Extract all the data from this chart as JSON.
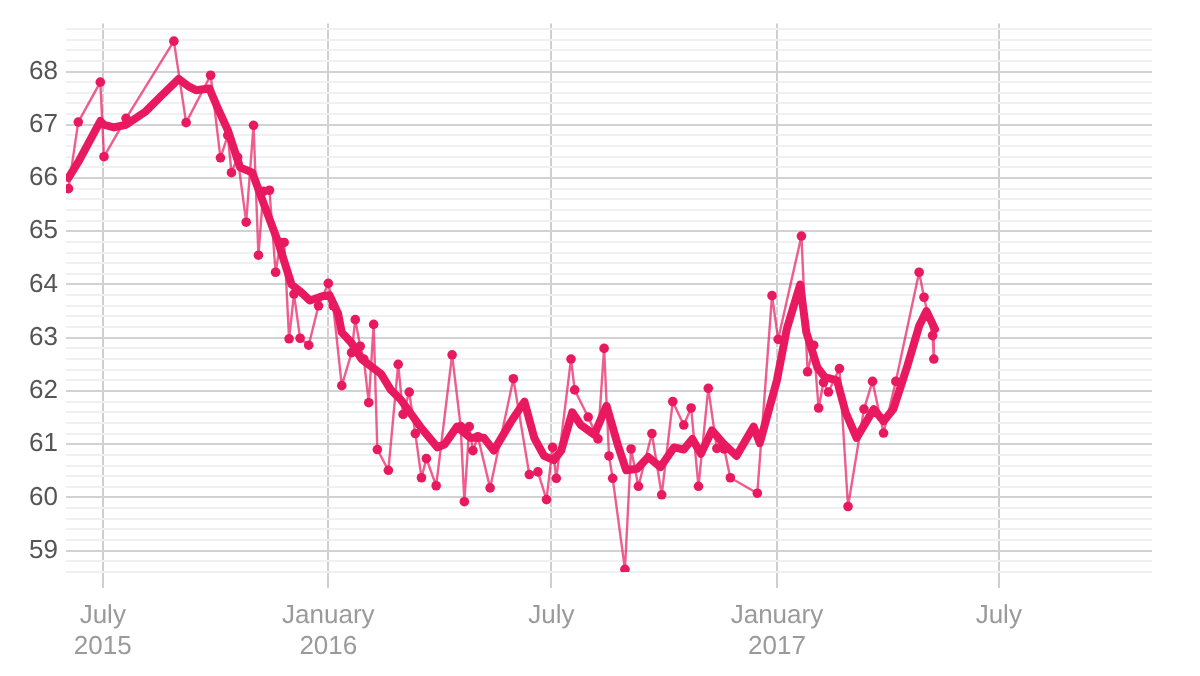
{
  "chart_data": {
    "type": "line",
    "legend": false,
    "grid": true,
    "marker": "circle",
    "line_style": "solid",
    "xlim": [
      "2015-06-01",
      "2017-11-03"
    ],
    "xticks": [
      {
        "value": "2015-07-01",
        "label": "July\n2015"
      },
      {
        "value": "2016-01-01",
        "label": "January\n2016"
      },
      {
        "value": "2016-07-01",
        "label": "July"
      },
      {
        "value": "2017-01-01",
        "label": "January\n2017"
      },
      {
        "value": "2017-07-01",
        "label": "July"
      }
    ],
    "ylim": [
      58.6,
      68.9
    ],
    "yticks": [
      {
        "value": 58.6,
        "label": null
      },
      {
        "value": 58.8,
        "label": null
      },
      59,
      {
        "value": 59.2,
        "label": null
      },
      {
        "value": 59.4,
        "label": null
      },
      {
        "value": 59.6,
        "label": null
      },
      {
        "value": 59.8,
        "label": null
      },
      60,
      {
        "value": 60.2,
        "label": null
      },
      {
        "value": 60.4,
        "label": null
      },
      {
        "value": 60.6,
        "label": null
      },
      {
        "value": 60.8,
        "label": null
      },
      61,
      {
        "value": 61.2,
        "label": null
      },
      {
        "value": 61.4,
        "label": null
      },
      {
        "value": 61.6,
        "label": null
      },
      {
        "value": 61.8,
        "label": null
      },
      62,
      {
        "value": 62.2,
        "label": null
      },
      {
        "value": 62.4,
        "label": null
      },
      {
        "value": 62.6,
        "label": null
      },
      {
        "value": 62.8,
        "label": null
      },
      63,
      {
        "value": 63.2,
        "label": null
      },
      {
        "value": 63.4,
        "label": null
      },
      {
        "value": 63.6,
        "label": null
      },
      {
        "value": 63.8,
        "label": null
      },
      64,
      {
        "value": 64.2,
        "label": null
      },
      {
        "value": 64.4,
        "label": null
      },
      {
        "value": 64.6,
        "label": null
      },
      {
        "value": 64.8,
        "label": null
      },
      65,
      {
        "value": 65.2,
        "label": null
      },
      {
        "value": 65.4,
        "label": null
      },
      {
        "value": 65.6,
        "label": null
      },
      {
        "value": 65.8,
        "label": null
      },
      66,
      {
        "value": 66.2,
        "label": null
      },
      {
        "value": 66.4,
        "label": null
      },
      {
        "value": 66.6,
        "label": null
      },
      {
        "value": 66.8,
        "label": null
      },
      67,
      {
        "value": 67.2,
        "label": null
      },
      {
        "value": 67.4,
        "label": null
      },
      {
        "value": 67.6,
        "label": null
      },
      {
        "value": 67.8,
        "label": null
      },
      68,
      {
        "value": 68.2,
        "label": null
      },
      {
        "value": 68.4,
        "label": null
      },
      {
        "value": 68.6,
        "label": null
      },
      {
        "value": 68.8,
        "label": null
      }
    ],
    "series": [
      {
        "color": "#e8195e",
        "x": [
          "2015-06-03",
          "2015-06-11",
          "2015-06-29",
          "2015-07-02",
          "2015-07-20",
          "2015-08-28",
          "2015-09-07",
          "2015-09-27",
          "2015-10-05",
          "2015-10-11",
          "2015-10-14",
          "2015-10-19",
          "2015-10-26",
          "2015-11-01",
          "2015-11-05",
          "2015-11-09",
          "2015-11-14",
          "2015-11-19",
          "2015-11-23",
          "2015-11-26",
          "2015-11-30",
          "2015-12-04",
          "2015-12-09",
          "2015-12-16",
          "2015-12-24",
          "2016-01-01",
          "2016-01-05",
          "2016-01-12",
          "2016-01-20",
          "2016-01-23",
          "2016-01-27",
          "2016-01-30",
          "2016-02-03",
          "2016-02-07",
          "2016-02-10",
          "2016-02-19",
          "2016-02-27",
          "2016-03-02",
          "2016-03-07",
          "2016-03-12",
          "2016-03-17",
          "2016-03-21",
          "2016-03-29",
          "2016-04-11",
          "2016-04-18",
          "2016-04-21",
          "2016-04-25",
          "2016-04-28",
          "2016-05-02",
          "2016-05-12",
          "2016-05-31",
          "2016-06-13",
          "2016-06-20",
          "2016-06-27",
          "2016-07-02",
          "2016-07-05",
          "2016-07-17",
          "2016-07-20",
          "2016-07-31",
          "2016-08-08",
          "2016-08-13",
          "2016-08-17",
          "2016-08-20",
          "2016-08-30",
          "2016-09-04",
          "2016-09-10",
          "2016-09-21",
          "2016-09-29",
          "2016-10-08",
          "2016-10-17",
          "2016-10-23",
          "2016-10-29",
          "2016-11-06",
          "2016-11-13",
          "2016-11-19",
          "2016-11-24",
          "2016-12-16",
          "2016-12-28",
          "2017-01-02",
          "2017-01-21",
          "2017-01-26",
          "2017-01-31",
          "2017-02-04",
          "2017-02-08",
          "2017-02-12",
          "2017-02-21",
          "2017-02-28",
          "2017-03-13",
          "2017-03-20",
          "2017-03-29",
          "2017-04-08",
          "2017-04-27",
          "2017-05-01",
          "2017-05-08",
          "2017-05-09"
        ],
        "values": [
          65.8,
          67.05,
          67.8,
          66.4,
          67.12,
          68.57,
          67.04,
          67.93,
          66.38,
          66.8,
          66.1,
          66.39,
          65.17,
          66.99,
          64.55,
          65.75,
          65.77,
          64.23,
          64.79,
          64.79,
          62.98,
          63.82,
          62.99,
          62.86,
          63.6,
          64.02,
          63.6,
          62.1,
          62.72,
          63.34,
          62.84,
          62.6,
          61.78,
          63.25,
          60.9,
          60.51,
          62.5,
          61.56,
          61.98,
          61.2,
          60.37,
          60.73,
          60.22,
          62.68,
          61.33,
          59.92,
          61.33,
          60.88,
          61.14,
          60.18,
          62.23,
          60.43,
          60.48,
          59.96,
          60.94,
          60.36,
          62.6,
          62.02,
          61.51,
          61.1,
          62.8,
          60.78,
          60.36,
          58.65,
          60.91,
          60.21,
          61.2,
          60.05,
          61.8,
          61.36,
          61.68,
          60.21,
          62.05,
          60.92,
          60.91,
          60.37,
          60.08,
          63.79,
          62.97,
          64.91,
          62.36,
          62.86,
          61.68,
          62.16,
          61.98,
          62.42,
          59.83,
          61.66,
          62.18,
          61.21,
          62.18,
          64.23,
          63.76,
          63.04,
          62.6
        ]
      },
      {
        "marker": "none",
        "color": "#e8195e",
        "x": [
          "2015-06-03",
          "2015-06-11",
          "2015-06-29",
          "2015-07-02",
          "2015-07-10",
          "2015-07-20",
          "2015-08-05",
          "2015-08-18",
          "2015-09-01",
          "2015-09-09",
          "2015-09-15",
          "2015-09-26",
          "2015-10-03",
          "2015-10-11",
          "2015-10-21",
          "2015-10-31",
          "2015-11-08",
          "2015-11-21",
          "2015-12-02",
          "2015-12-10",
          "2015-12-17",
          "2015-12-27",
          "2016-01-02",
          "2016-01-09",
          "2016-01-12",
          "2016-01-20",
          "2016-01-28",
          "2016-02-13",
          "2016-02-21",
          "2016-02-29",
          "2016-03-17",
          "2016-03-30",
          "2016-04-05",
          "2016-04-15",
          "2016-04-26",
          "2016-05-07",
          "2016-05-15",
          "2016-05-29",
          "2016-06-09",
          "2016-06-17",
          "2016-06-25",
          "2016-07-03",
          "2016-07-09",
          "2016-07-18",
          "2016-07-25",
          "2016-08-05",
          "2016-08-15",
          "2016-08-24",
          "2016-08-31",
          "2016-09-09",
          "2016-09-18",
          "2016-09-28",
          "2016-10-09",
          "2016-10-17",
          "2016-10-24",
          "2016-10-31",
          "2016-11-09",
          "2016-11-18",
          "2016-11-29",
          "2016-12-13",
          "2016-12-18",
          "2017-01-01",
          "2017-01-09",
          "2017-01-20",
          "2017-01-25",
          "2017-02-03",
          "2017-02-09",
          "2017-02-19",
          "2017-02-26",
          "2017-03-07",
          "2017-03-21",
          "2017-03-29",
          "2017-04-06",
          "2017-04-17",
          "2017-04-27",
          "2017-05-03",
          "2017-05-10"
        ],
        "values": [
          66.0,
          66.3,
          67.07,
          67.0,
          66.95,
          67.0,
          67.25,
          67.55,
          67.86,
          67.72,
          67.65,
          67.68,
          67.3,
          66.9,
          66.2,
          66.1,
          65.6,
          64.8,
          64.0,
          63.85,
          63.7,
          63.78,
          63.8,
          63.45,
          63.1,
          62.9,
          62.6,
          62.32,
          62.02,
          61.84,
          61.3,
          60.94,
          61.0,
          61.33,
          61.12,
          61.12,
          60.88,
          61.42,
          61.8,
          61.12,
          60.78,
          60.7,
          60.88,
          61.6,
          61.36,
          61.18,
          61.72,
          61.0,
          60.51,
          60.54,
          60.76,
          60.57,
          60.94,
          60.9,
          61.1,
          60.82,
          61.26,
          61.02,
          60.78,
          61.33,
          61.02,
          62.2,
          63.16,
          64.0,
          63.1,
          62.44,
          62.26,
          62.2,
          61.6,
          61.12,
          61.66,
          61.43,
          61.66,
          62.44,
          63.22,
          63.5,
          63.16
        ]
      }
    ]
  }
}
